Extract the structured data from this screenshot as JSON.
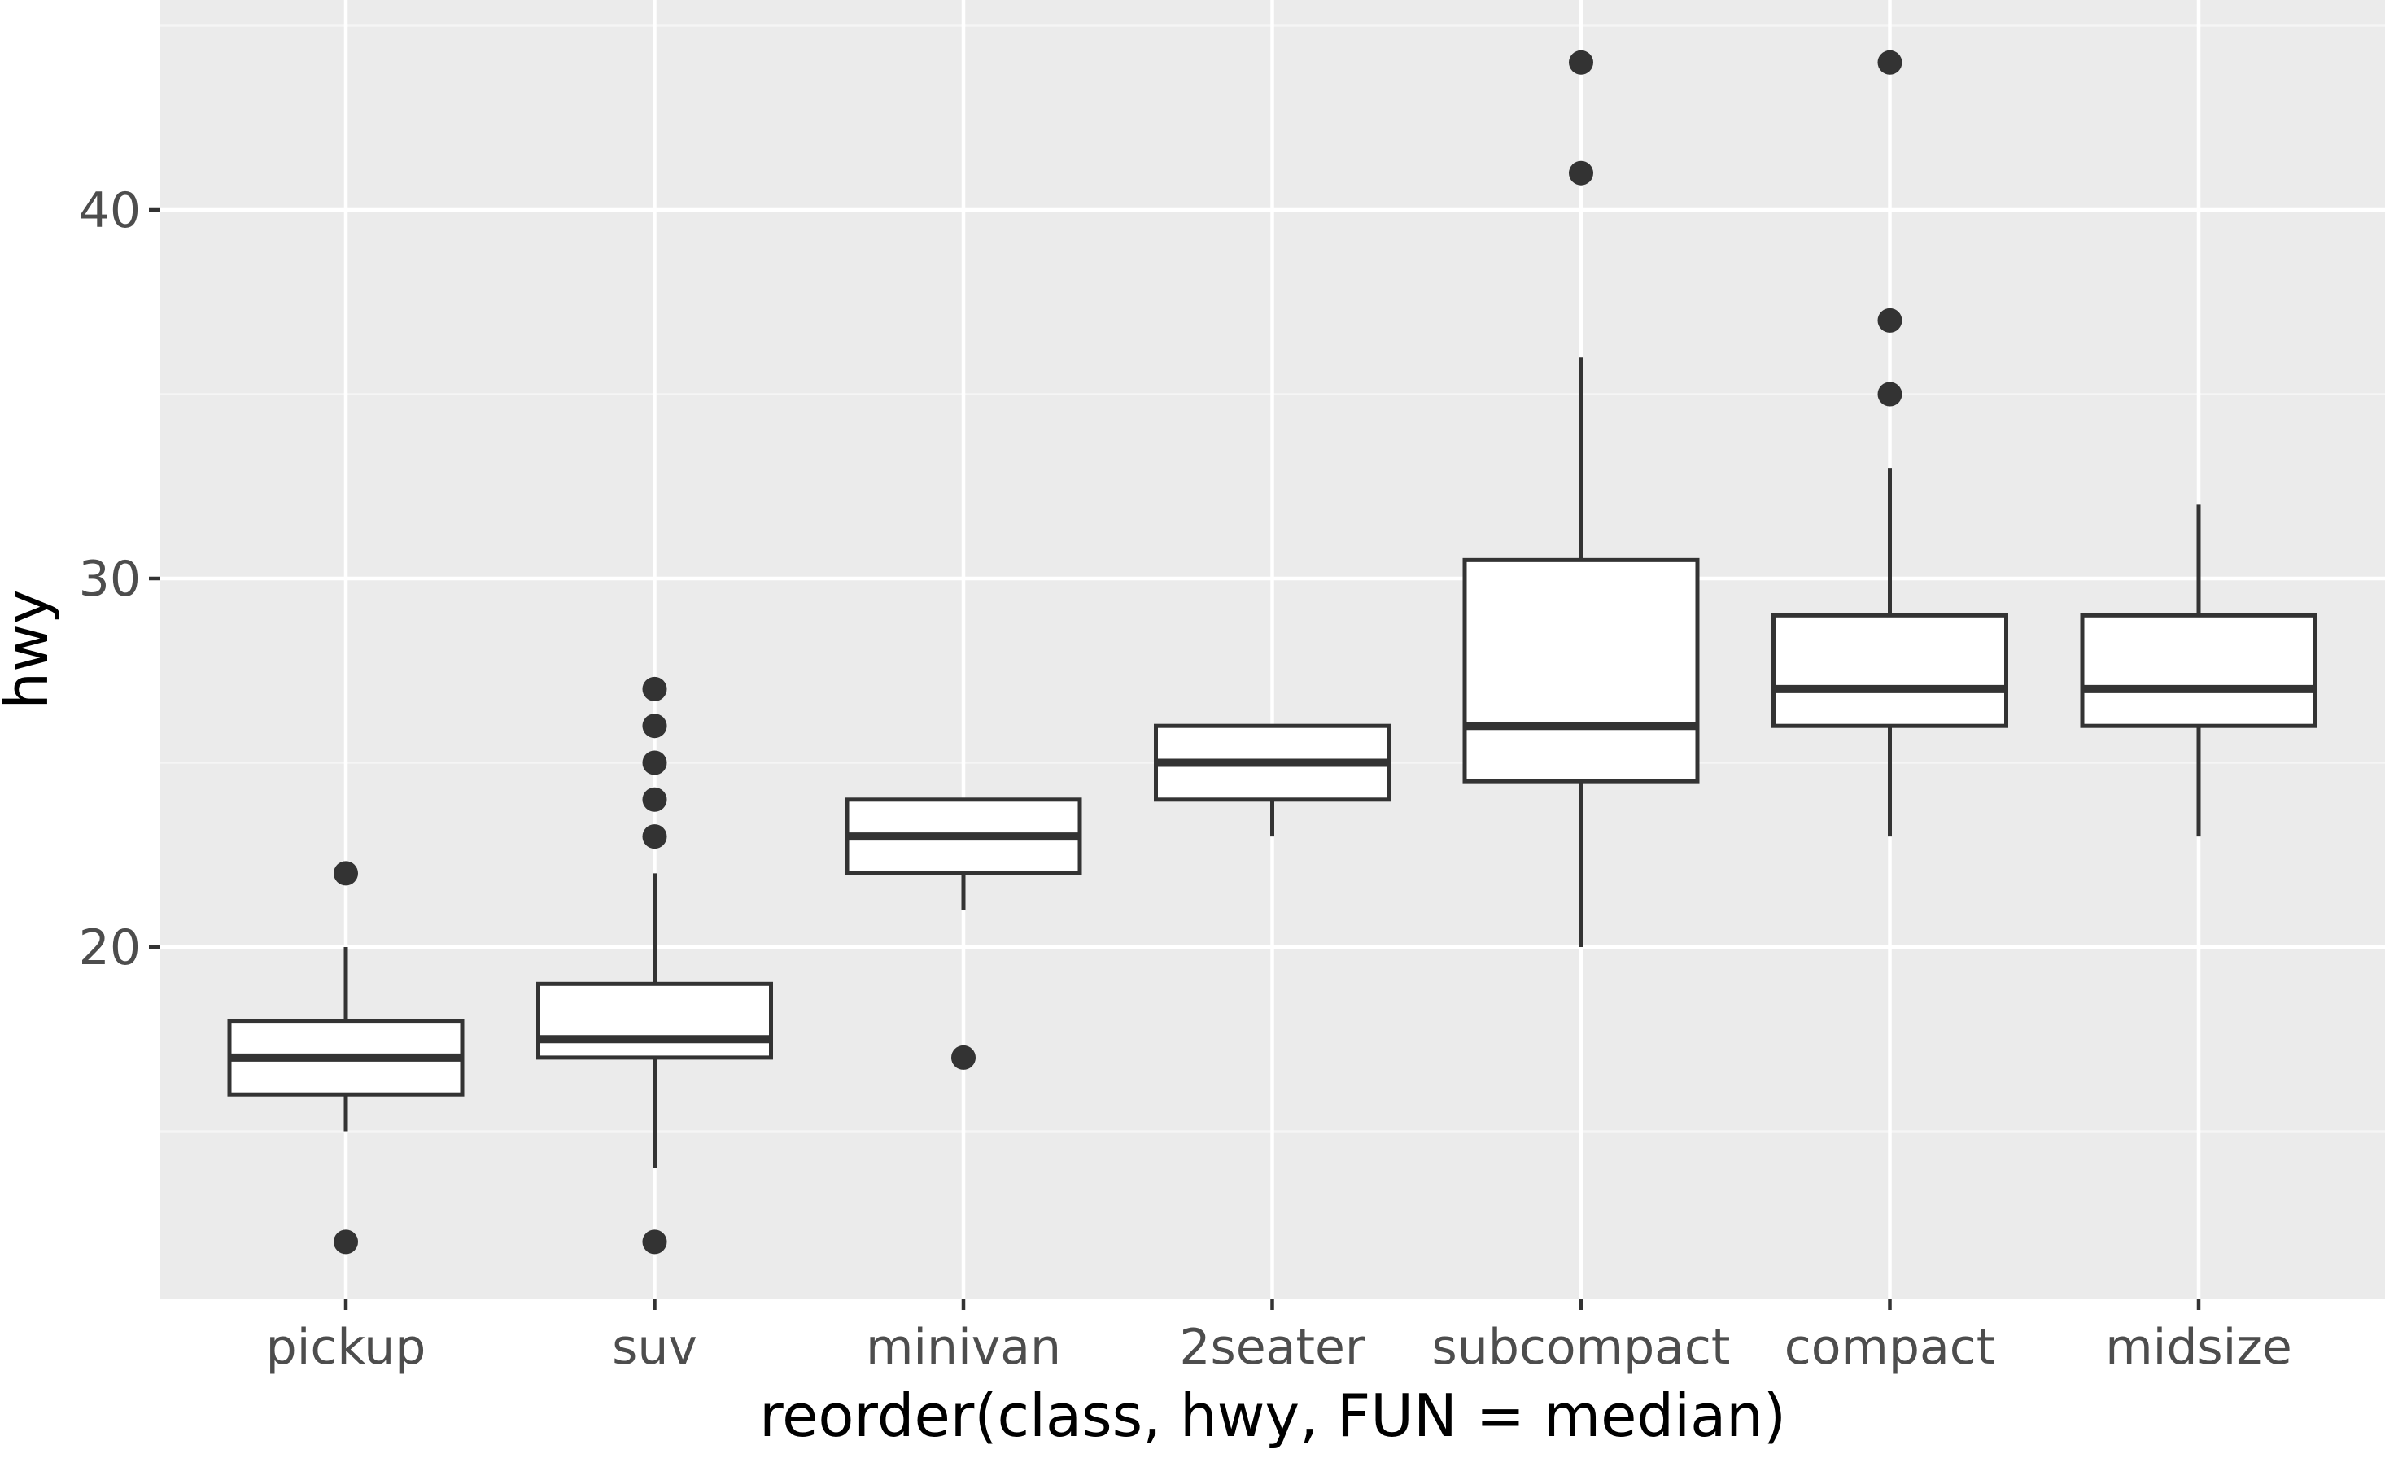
{
  "chart_data": {
    "type": "boxplot",
    "xlabel": "reorder(class, hwy, FUN = median)",
    "ylabel": "hwy",
    "ylim": [
      10.5,
      45
    ],
    "yticks": [
      20,
      30,
      40
    ],
    "y_minor_ticks": [
      15,
      25,
      35,
      45
    ],
    "grid": true,
    "categories": [
      "pickup",
      "suv",
      "minivan",
      "2seater",
      "subcompact",
      "compact",
      "midsize"
    ],
    "boxes": [
      {
        "category": "pickup",
        "whisker_low": 15,
        "q1": 16,
        "median": 17,
        "q3": 18,
        "whisker_high": 20,
        "outliers": [
          12,
          22
        ]
      },
      {
        "category": "suv",
        "whisker_low": 14,
        "q1": 17,
        "median": 17.5,
        "q3": 19,
        "whisker_high": 22,
        "outliers": [
          12,
          23,
          24,
          25,
          26,
          27
        ]
      },
      {
        "category": "minivan",
        "whisker_low": 21,
        "q1": 22,
        "median": 23,
        "q3": 24,
        "whisker_high": 24,
        "outliers": [
          17
        ]
      },
      {
        "category": "2seater",
        "whisker_low": 23,
        "q1": 24,
        "median": 25,
        "q3": 26,
        "whisker_high": 26,
        "outliers": []
      },
      {
        "category": "subcompact",
        "whisker_low": 20,
        "q1": 24.5,
        "median": 26,
        "q3": 30.5,
        "whisker_high": 36,
        "outliers": [
          41,
          44
        ]
      },
      {
        "category": "compact",
        "whisker_low": 23,
        "q1": 26,
        "median": 27,
        "q3": 29,
        "whisker_high": 33,
        "outliers": [
          35,
          37,
          44
        ]
      },
      {
        "category": "midsize",
        "whisker_low": 23,
        "q1": 26,
        "median": 27,
        "q3": 29,
        "whisker_high": 32,
        "outliers": []
      }
    ],
    "colors": {
      "panel_background": "#ebebeb",
      "grid_major": "#ffffff",
      "grid_minor": "#f5f5f5",
      "box_fill": "#ffffff",
      "box_line": "#333333",
      "tick_text": "#4d4d4d",
      "axis_title": "#000000"
    }
  }
}
